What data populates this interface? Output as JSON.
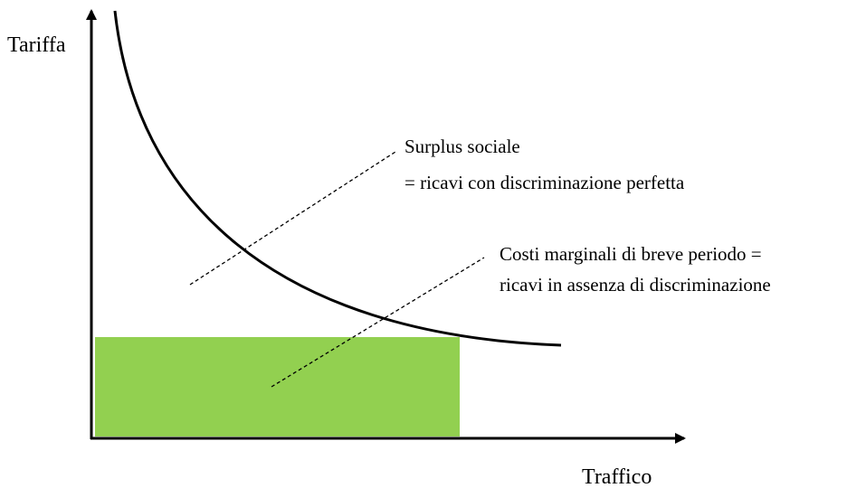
{
  "axes": {
    "y_label": "Tariffa",
    "x_label": "Traffico"
  },
  "annotations": [
    {
      "lines": [
        "Surplus sociale",
        "= ricavi con discriminazione perfetta"
      ]
    },
    {
      "lines": [
        "Costi marginali di breve periodo =",
        "ricavi in assenza di discriminazione"
      ]
    }
  ]
}
